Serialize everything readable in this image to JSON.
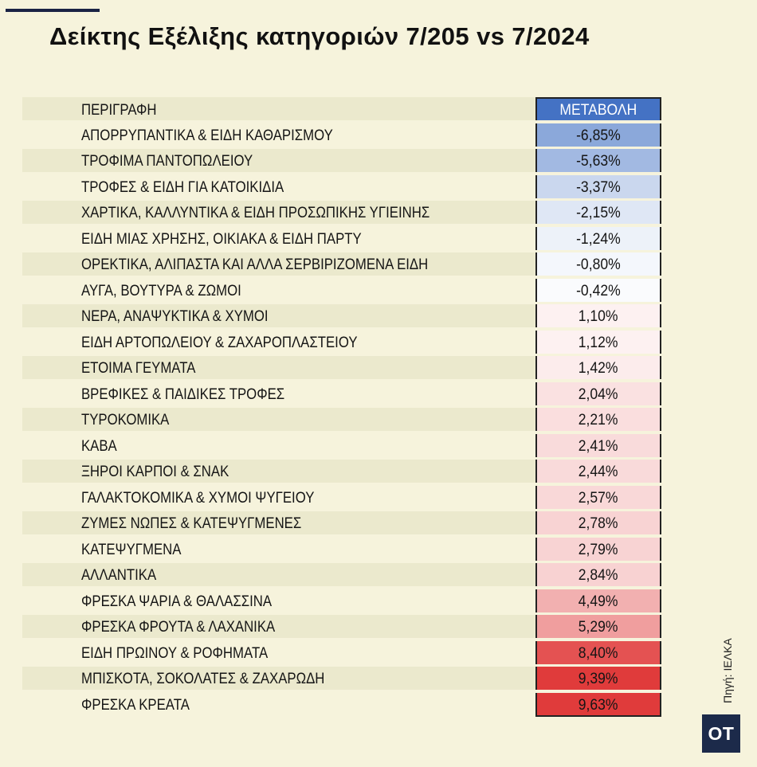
{
  "title": "Δείκτης Εξέλιξης κατηγοριών 7/205 vs 7/2024",
  "source": "Πηγή: ΙΕΛΚΑ",
  "logo_text": "OT",
  "colors": {
    "background": "#f6f3dc",
    "stripe": "#ebe9cd",
    "header_cell": "#4472c4",
    "negative": "#4472c4",
    "positive": "#e03b3b",
    "neutral": "#ffffff"
  },
  "chart_data": {
    "type": "table",
    "title": "Δείκτης Εξέλιξης κατηγοριών 7/205 vs 7/2024",
    "columns": [
      "ΠΕΡΙΓΡΑΦΗ",
      "ΜΕΤΑΒΟΛΗ"
    ],
    "rows": [
      {
        "label": "ΑΠΟΡΡΥΠΑΝΤΙΚΑ & ΕΙΔΗ ΚΑΘΑΡΙΣΜΟΥ",
        "value": -6.85,
        "display": "-6,85%"
      },
      {
        "label": "ΤΡΟΦΙΜΑ ΠΑΝΤΟΠΩΛΕΙΟΥ",
        "value": -5.63,
        "display": "-5,63%"
      },
      {
        "label": "ΤΡΟΦΕΣ & ΕΙΔΗ ΓΙΑ ΚΑΤΟΙΚΙΔΙΑ",
        "value": -3.37,
        "display": "-3,37%"
      },
      {
        "label": "ΧΑΡΤΙΚΑ, ΚΑΛΛΥΝΤΙΚΑ & ΕΙΔΗ ΠΡΟΣΩΠΙΚΗΣ ΥΓΙΕΙΝΗΣ",
        "value": -2.15,
        "display": "-2,15%"
      },
      {
        "label": "ΕΙΔΗ ΜΙΑΣ ΧΡΗΣΗΣ, ΟΙΚΙΑΚΑ & ΕΙΔΗ ΠΑΡΤΥ",
        "value": -1.24,
        "display": "-1,24%"
      },
      {
        "label": "ΟΡΕΚΤΙΚΑ, ΑΛΙΠΑΣΤΑ ΚΑΙ ΑΛΛΑ ΣΕΡΒΙΡΙΖΟΜΕΝΑ ΕΙΔΗ",
        "value": -0.8,
        "display": "-0,80%"
      },
      {
        "label": "ΑΥΓΑ, ΒΟΥΤΥΡΑ & ΖΩΜΟΙ",
        "value": -0.42,
        "display": "-0,42%"
      },
      {
        "label": "ΝΕΡΑ, ΑΝΑΨΥΚΤΙΚΑ & ΧΥΜΟΙ",
        "value": 1.1,
        "display": "1,10%"
      },
      {
        "label": "ΕΙΔΗ ΑΡΤΟΠΩΛΕΙΟΥ & ΖΑΧΑΡΟΠΛΑΣΤΕΙΟΥ",
        "value": 1.12,
        "display": "1,12%"
      },
      {
        "label": "ΕΤΟΙΜΑ ΓΕΥΜΑΤΑ",
        "value": 1.42,
        "display": "1,42%"
      },
      {
        "label": "ΒΡΕΦΙΚΕΣ & ΠΑΙΔΙΚΕΣ ΤΡΟΦΕΣ",
        "value": 2.04,
        "display": "2,04%"
      },
      {
        "label": "ΤΥΡΟΚΟΜΙΚΑ",
        "value": 2.21,
        "display": "2,21%"
      },
      {
        "label": "ΚΑΒΑ",
        "value": 2.41,
        "display": "2,41%"
      },
      {
        "label": "ΞΗΡΟΙ ΚΑΡΠΟΙ & ΣΝΑΚ",
        "value": 2.44,
        "display": "2,44%"
      },
      {
        "label": "ΓΑΛΑΚΤΟΚΟΜΙΚΑ & ΧΥΜΟΙ ΨΥΓΕΙΟΥ",
        "value": 2.57,
        "display": "2,57%"
      },
      {
        "label": "ΖΥΜΕΣ ΝΩΠΕΣ & ΚΑΤΕΨΥΓΜΕΝΕΣ",
        "value": 2.78,
        "display": "2,78%"
      },
      {
        "label": "ΚΑΤΕΨΥΓΜΕΝΑ",
        "value": 2.79,
        "display": "2,79%"
      },
      {
        "label": "ΑΛΛΑΝΤΙΚΑ",
        "value": 2.84,
        "display": "2,84%"
      },
      {
        "label": "ΦΡΕΣΚΑ ΨΑΡΙΑ & ΘΑΛΑΣΣΙΝΑ",
        "value": 4.49,
        "display": "4,49%"
      },
      {
        "label": "ΦΡΕΣΚΑ ΦΡΟΥΤΑ & ΛΑΧΑΝΙΚΑ",
        "value": 5.29,
        "display": "5,29%"
      },
      {
        "label": "ΕΙΔΗ ΠΡΩΙΝΟΥ & ΡΟΦΗΜΑΤΑ",
        "value": 8.4,
        "display": "8,40%"
      },
      {
        "label": "ΜΠΙΣΚΟΤΑ, ΣΟΚΟΛΑΤΕΣ & ΖΑΧΑΡΩΔΗ",
        "value": 9.39,
        "display": "9,39%"
      },
      {
        "label": "ΦΡΕΣΚΑ ΚΡΕΑΤΑ",
        "value": 9.63,
        "display": "9,63%"
      }
    ]
  }
}
